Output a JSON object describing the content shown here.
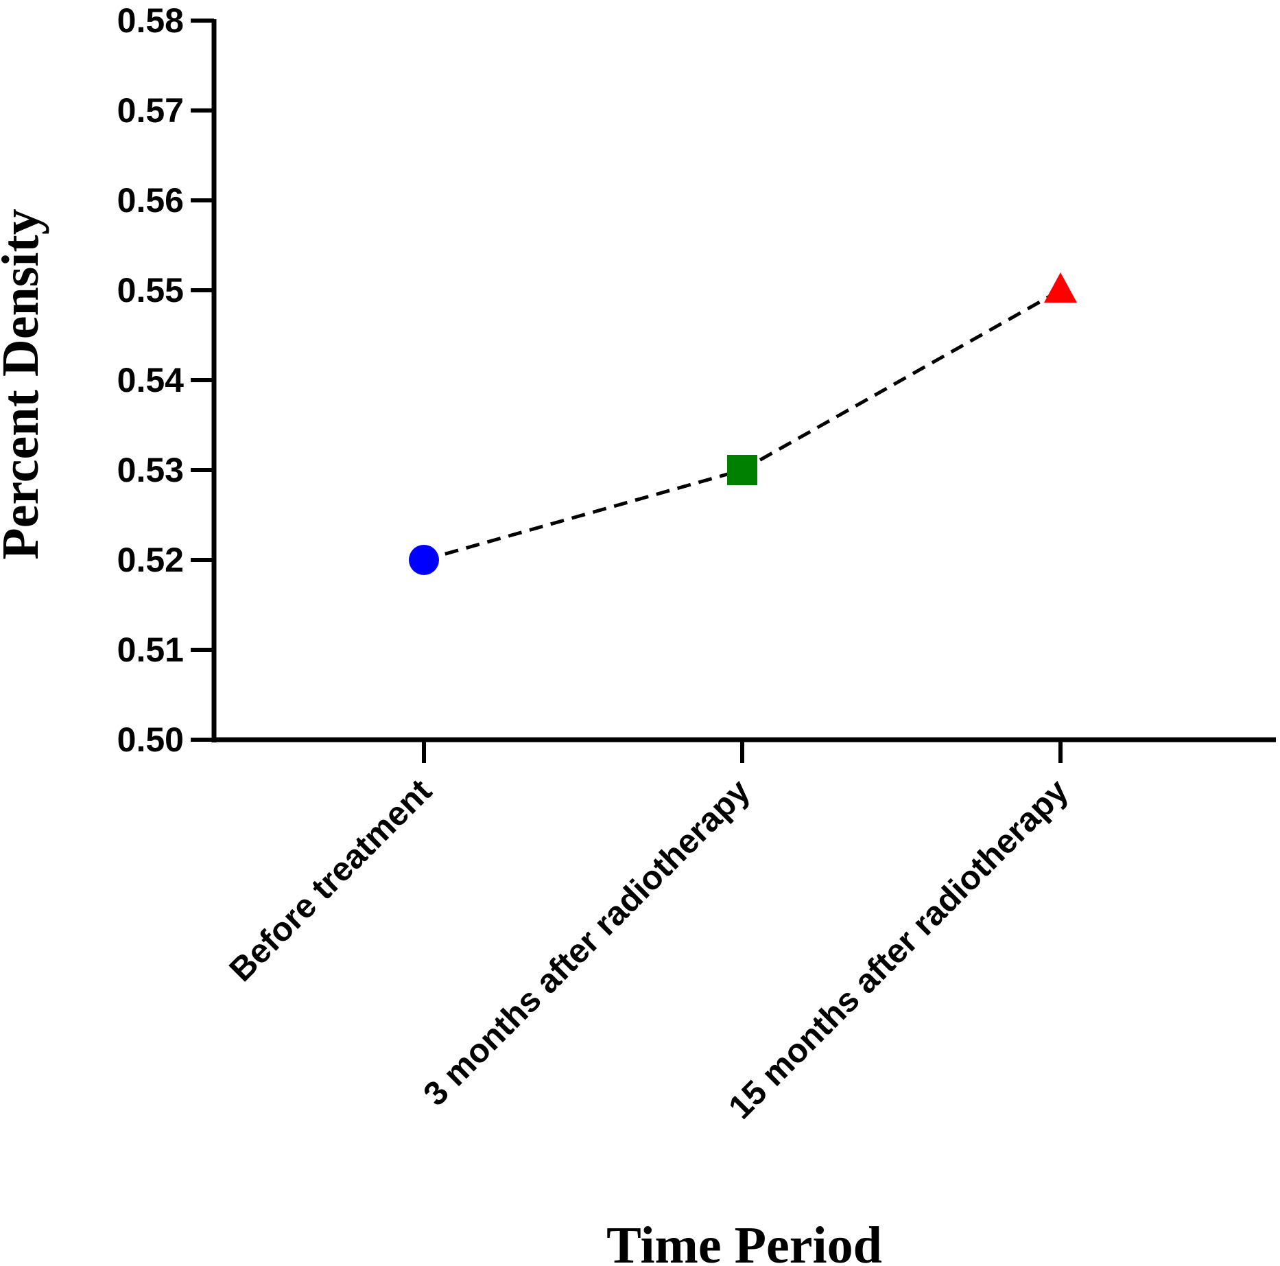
{
  "chart_data": {
    "type": "line",
    "title": "",
    "xlabel": "Time Period",
    "ylabel": "Percent Density",
    "categories": [
      "Before treatment",
      "3 months after radiotherapy",
      "15 months after radiotherapy"
    ],
    "series": [
      {
        "values": [
          0.52,
          0.53,
          0.55
        ],
        "line_style": "dashed",
        "line_color": "#000000",
        "markers": [
          {
            "shape": "circle",
            "color": "#0000FF"
          },
          {
            "shape": "square",
            "color": "#008000"
          },
          {
            "shape": "triangle",
            "color": "#FF0000"
          }
        ]
      }
    ],
    "ylim": [
      0.5,
      0.58
    ],
    "yticks": [
      "0.50",
      "0.51",
      "0.52",
      "0.53",
      "0.54",
      "0.55",
      "0.56",
      "0.57",
      "0.58"
    ],
    "grid": false,
    "legend": "none"
  }
}
